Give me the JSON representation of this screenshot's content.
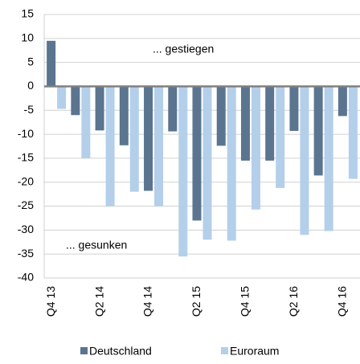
{
  "chart_data": {
    "type": "bar",
    "categories": [
      "Q4 13",
      null,
      "Q2 14",
      null,
      "Q4 14",
      null,
      "Q2 15",
      null,
      "Q4 15",
      null,
      "Q2 16",
      null,
      "Q4 16"
    ],
    "series": [
      {
        "name": "Deutschland",
        "color": "#5b7590",
        "values": [
          9.5,
          -6,
          -9.2,
          -12.3,
          -21.8,
          -9.4,
          -28,
          -12.4,
          -15.5,
          -15.5,
          -9.3,
          -18.6,
          -6.2
        ]
      },
      {
        "name": "Euroraum",
        "color": "#b4cfe9",
        "values": [
          -4.7,
          -15,
          -25,
          -22,
          -25,
          -35.5,
          -32,
          -32.2,
          -25.7,
          -21.2,
          -31,
          -30.2,
          -19.3
        ]
      }
    ],
    "annotations": [
      "... gestiegen",
      "... gesunken"
    ],
    "ylim": [
      -40,
      15
    ],
    "yticks": [
      15,
      10,
      5,
      0,
      -5,
      -10,
      -15,
      -20,
      -25,
      -30,
      -35,
      -40
    ],
    "grid": true,
    "legend": "bottom"
  }
}
